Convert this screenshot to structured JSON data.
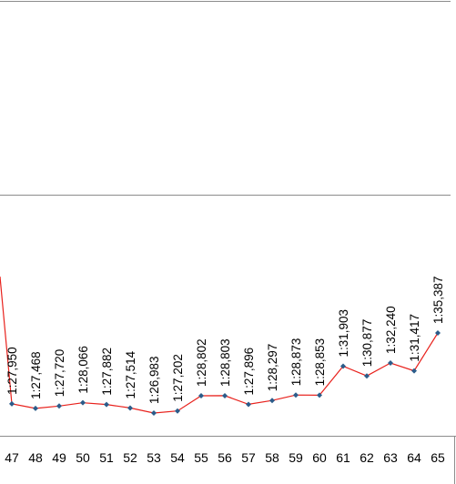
{
  "chart_data": {
    "type": "line",
    "title": "",
    "xlabel": "",
    "ylabel": "",
    "categories": [
      "47",
      "48",
      "49",
      "50",
      "51",
      "52",
      "53",
      "54",
      "55",
      "56",
      "57",
      "58",
      "59",
      "60",
      "61",
      "62",
      "63",
      "64",
      "65"
    ],
    "series": [
      {
        "values": [
          87.95,
          87.468,
          87.72,
          88.066,
          87.882,
          87.514,
          86.983,
          87.202,
          88.802,
          88.803,
          87.896,
          88.297,
          88.873,
          88.853,
          91.903,
          90.877,
          92.24,
          91.417,
          95.387
        ],
        "labels": [
          "1:27,950",
          "1:27,468",
          "1:27,720",
          "1:28,066",
          "1:27,882",
          "1:27,514",
          "1:26,983",
          "1:27,202",
          "1:28,802",
          "1:28,803",
          "1:27,896",
          "1:28,297",
          "1:28,873",
          "1:28,853",
          "1:31,903",
          "1:30,877",
          "1:32,240",
          "1:31,417",
          "1:35,387"
        ]
      }
    ],
    "line_color": "#e8211c",
    "marker_color": "#2b5c8a",
    "gridlines": "horizontal",
    "legend": "none"
  }
}
